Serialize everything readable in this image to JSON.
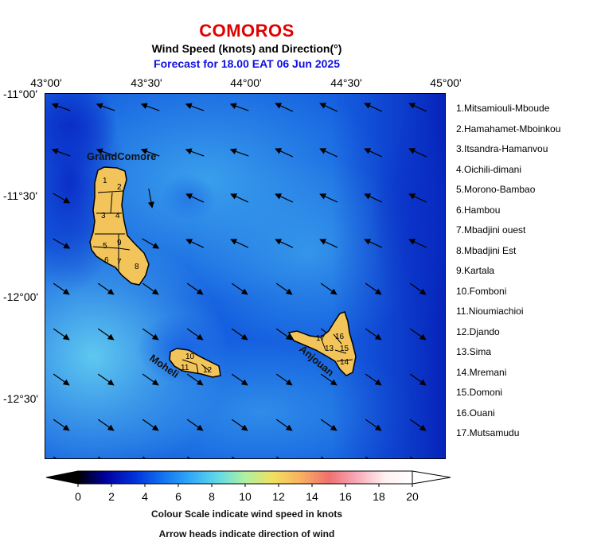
{
  "header": {
    "country": "COMOROS",
    "subtitle": "Wind Speed (knots) and Direction(°)",
    "forecast": "Forecast for  18.00 EAT 06 Jun 2025"
  },
  "axes": {
    "longitude_labels": [
      "43°00'",
      "43°30'",
      "44°00'",
      "44°30'",
      "45°00'"
    ],
    "latitude_labels": [
      "-11°00'",
      "-11°30'",
      "-12°00'",
      "-12°30'"
    ]
  },
  "islands": {
    "grand_comore": "GrandComore",
    "moheli": "Moheli",
    "anjouan": "Anjouan",
    "island_fill": "#f2c45a"
  },
  "districts": [
    "1.Mitsamiouli-Mboude",
    "2.Hamahamet-Mboinkou",
    "3.Itsandra-Hamanvou",
    "4.Oichili-dimani",
    "5.Morono-Bambao",
    "6.Hambou",
    "7.Mbadjini ouest",
    "8.Mbadjini Est",
    "9.Kartala",
    "10.Fomboni",
    "11.Nioumiachioi",
    "12.Djando",
    "13.Sima",
    "14.Mremani",
    "15.Domoni",
    "16.Ouani",
    "17.Mutsamudu"
  ],
  "district_numbers": {
    "gc": [
      "1",
      "2",
      "3",
      "4",
      "5",
      "6",
      "7",
      "8",
      "9"
    ],
    "moheli": [
      "10",
      "11",
      "12"
    ],
    "anjouan": [
      "13",
      "15",
      "14",
      "16",
      "17"
    ]
  },
  "colorbar": {
    "ticks": [
      "0",
      "2",
      "4",
      "6",
      "8",
      "10",
      "12",
      "14",
      "16",
      "18",
      "20"
    ],
    "min": 0,
    "max": 20,
    "colors": [
      "#000000",
      "#0000a0",
      "#0030d8",
      "#1070f0",
      "#30a8f8",
      "#60d8e8",
      "#b0f0a0",
      "#f0e060",
      "#f8b060",
      "#f07070",
      "#f8a8b8",
      "#fff0f0",
      "#ffffff"
    ]
  },
  "captions": {
    "line1": "Colour Scale indicate wind speed in knots",
    "line2": "Arrow heads indicate direction of wind"
  }
}
